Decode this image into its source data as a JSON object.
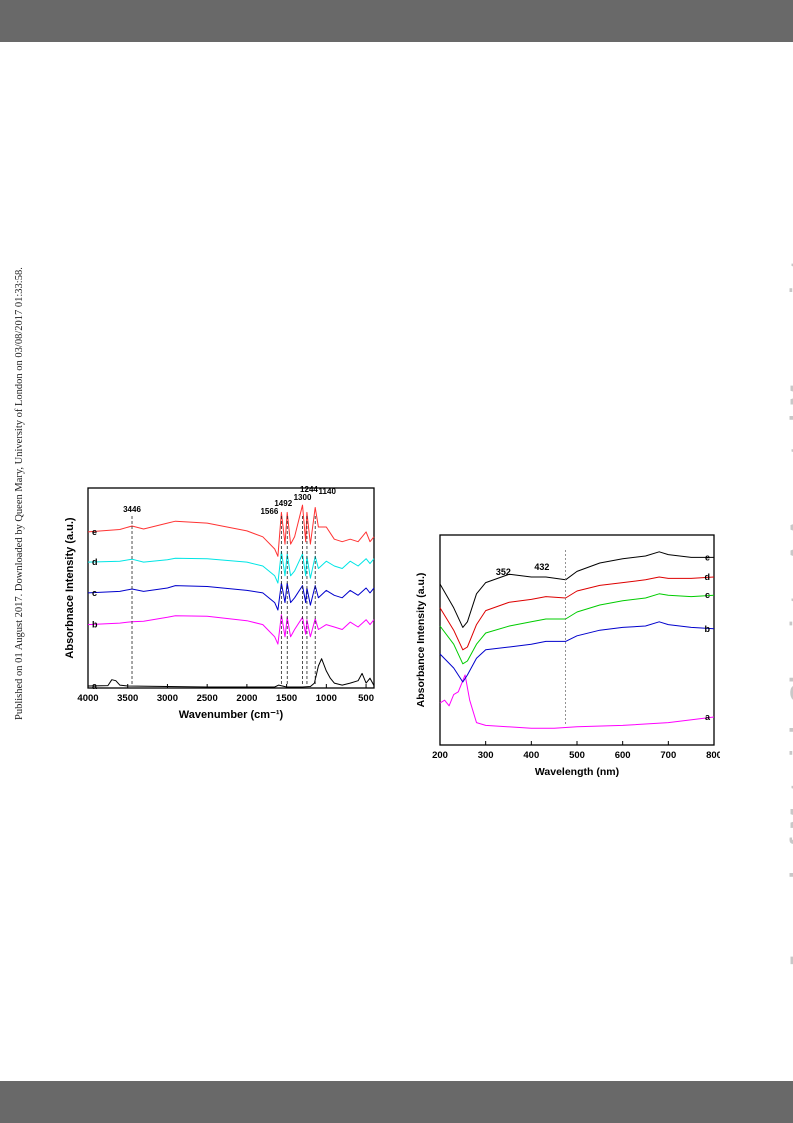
{
  "side_note": "Published on 01 August 2017. Downloaded by Queen Mary, University of London on 03/08/2017 01:33:58.",
  "journal_watermark": "Journal of Materials Chemistry A Accepted Manuscript",
  "chart_data": [
    {
      "type": "line",
      "xlabel": "Wavenumber (cm⁻¹)",
      "ylabel": "Absorbnace Intensity (a.u.)",
      "xlim": [
        4000,
        400
      ],
      "x_ticks": [
        "4000",
        "3500",
        "3000",
        "2500",
        "2000",
        "1500",
        "1000",
        "500"
      ],
      "peak_labels": [
        "3446",
        "1566",
        "1492",
        "1300",
        "1244",
        "1140"
      ],
      "peak_positions": [
        3446,
        1566,
        1492,
        1300,
        1244,
        1140
      ],
      "series": [
        {
          "name": "a",
          "color": "#000000",
          "x": [
            4000,
            3750,
            3700,
            3650,
            3600,
            3500,
            3000,
            2500,
            2000,
            1650,
            1600,
            1500,
            1300,
            1200,
            1150,
            1100,
            1060,
            1000,
            950,
            900,
            800,
            700,
            600,
            550,
            500,
            450,
            400
          ],
          "y": [
            0.04,
            0.05,
            0.17,
            0.15,
            0.06,
            0.04,
            0.03,
            0.02,
            0.02,
            0.02,
            0.06,
            0.02,
            0.02,
            0.03,
            0.1,
            0.45,
            0.6,
            0.35,
            0.2,
            0.1,
            0.06,
            0.1,
            0.15,
            0.3,
            0.1,
            0.2,
            0.05
          ]
        },
        {
          "name": "b",
          "color": "#ff00ff",
          "x": [
            4000,
            3600,
            3446,
            3300,
            3000,
            2900,
            2500,
            2000,
            1800,
            1650,
            1610,
            1566,
            1520,
            1492,
            1450,
            1400,
            1300,
            1260,
            1244,
            1200,
            1140,
            1100,
            1000,
            900,
            800,
            700,
            600,
            500,
            450,
            400
          ],
          "y": [
            1.3,
            1.33,
            1.36,
            1.37,
            1.45,
            1.48,
            1.47,
            1.38,
            1.3,
            1.05,
            0.9,
            1.5,
            1.05,
            1.45,
            1.05,
            1.2,
            1.45,
            1.1,
            1.4,
            1.05,
            1.42,
            1.2,
            1.3,
            1.25,
            1.2,
            1.35,
            1.25,
            1.4,
            1.3,
            1.4
          ]
        },
        {
          "name": "c",
          "color": "#0000cc",
          "x": [
            4000,
            3600,
            3446,
            3300,
            3000,
            2900,
            2500,
            2000,
            1800,
            1650,
            1610,
            1566,
            1520,
            1492,
            1450,
            1400,
            1300,
            1260,
            1244,
            1200,
            1140,
            1100,
            1000,
            900,
            800,
            700,
            600,
            500,
            450,
            400
          ],
          "y": [
            1.95,
            1.98,
            2.03,
            1.98,
            2.05,
            2.1,
            2.08,
            2.0,
            1.95,
            1.75,
            1.6,
            2.15,
            1.75,
            2.15,
            1.75,
            1.85,
            2.1,
            1.75,
            2.05,
            1.7,
            2.1,
            1.85,
            2.0,
            1.9,
            1.85,
            2.0,
            1.9,
            2.05,
            1.95,
            2.05
          ]
        },
        {
          "name": "d",
          "color": "#00e5e5",
          "x": [
            4000,
            3600,
            3446,
            3300,
            3000,
            2900,
            2500,
            2000,
            1800,
            1650,
            1610,
            1566,
            1520,
            1492,
            1450,
            1400,
            1300,
            1260,
            1244,
            1200,
            1140,
            1100,
            1000,
            900,
            800,
            700,
            600,
            500,
            450,
            400
          ],
          "y": [
            2.58,
            2.6,
            2.64,
            2.58,
            2.63,
            2.66,
            2.65,
            2.58,
            2.5,
            2.3,
            2.15,
            2.8,
            2.3,
            2.75,
            2.3,
            2.4,
            2.75,
            2.3,
            2.7,
            2.25,
            2.7,
            2.45,
            2.6,
            2.5,
            2.45,
            2.6,
            2.5,
            2.65,
            2.55,
            2.65
          ]
        },
        {
          "name": "e",
          "color": "#ff3333",
          "x": [
            4000,
            3600,
            3446,
            3300,
            3000,
            2900,
            2500,
            2000,
            1800,
            1650,
            1610,
            1566,
            1520,
            1492,
            1450,
            1400,
            1300,
            1260,
            1244,
            1200,
            1140,
            1100,
            1000,
            900,
            800,
            700,
            600,
            500,
            450,
            400
          ],
          "y": [
            3.2,
            3.25,
            3.32,
            3.26,
            3.38,
            3.42,
            3.38,
            3.22,
            3.1,
            2.85,
            2.7,
            3.6,
            2.95,
            3.6,
            2.95,
            3.1,
            3.75,
            3.0,
            3.6,
            2.95,
            3.7,
            3.3,
            3.3,
            3.05,
            3.0,
            3.05,
            3.0,
            3.2,
            3.0,
            3.1
          ]
        }
      ],
      "series_labels": [
        "a",
        "b",
        "c",
        "d",
        "e"
      ]
    },
    {
      "type": "line",
      "xlabel": "Wavelength (nm)",
      "ylabel": "Absorbance Intensity (a.u.)",
      "xlim": [
        200,
        800
      ],
      "x_ticks": [
        "200",
        "300",
        "400",
        "500",
        "600",
        "700",
        "800"
      ],
      "peak_labels": [
        "352",
        "432"
      ],
      "peak_positions": [
        352,
        432
      ],
      "dashed_x": 475,
      "series": [
        {
          "name": "a",
          "color": "#ff00ff",
          "x": [
            200,
            210,
            220,
            230,
            240,
            255,
            265,
            280,
            300,
            400,
            450,
            500,
            600,
            700,
            800
          ],
          "y": [
            0.3,
            0.32,
            0.28,
            0.36,
            0.38,
            0.5,
            0.32,
            0.16,
            0.14,
            0.12,
            0.12,
            0.13,
            0.14,
            0.16,
            0.2
          ]
        },
        {
          "name": "b",
          "color": "#0000cc",
          "x": [
            200,
            230,
            250,
            260,
            280,
            300,
            352,
            400,
            432,
            475,
            500,
            550,
            600,
            650,
            680,
            700,
            750,
            800
          ],
          "y": [
            0.65,
            0.55,
            0.45,
            0.5,
            0.62,
            0.68,
            0.7,
            0.72,
            0.74,
            0.74,
            0.78,
            0.82,
            0.84,
            0.85,
            0.88,
            0.86,
            0.84,
            0.83
          ]
        },
        {
          "name": "c",
          "color": "#00cc00",
          "x": [
            200,
            230,
            250,
            260,
            280,
            300,
            352,
            400,
            432,
            475,
            500,
            550,
            600,
            650,
            680,
            700,
            750,
            800
          ],
          "y": [
            0.85,
            0.72,
            0.58,
            0.6,
            0.72,
            0.8,
            0.85,
            0.88,
            0.9,
            0.9,
            0.95,
            1.0,
            1.03,
            1.05,
            1.08,
            1.07,
            1.06,
            1.07
          ]
        },
        {
          "name": "d",
          "color": "#dd0000",
          "x": [
            200,
            230,
            250,
            260,
            280,
            300,
            352,
            400,
            432,
            475,
            500,
            550,
            600,
            650,
            680,
            700,
            750,
            800
          ],
          "y": [
            0.98,
            0.82,
            0.68,
            0.7,
            0.86,
            0.96,
            1.02,
            1.04,
            1.06,
            1.05,
            1.1,
            1.14,
            1.16,
            1.18,
            1.2,
            1.19,
            1.19,
            1.2
          ]
        },
        {
          "name": "e",
          "color": "#000000",
          "x": [
            200,
            230,
            250,
            260,
            280,
            300,
            352,
            400,
            432,
            475,
            500,
            550,
            600,
            650,
            680,
            700,
            750,
            800
          ],
          "y": [
            1.15,
            0.98,
            0.84,
            0.88,
            1.08,
            1.16,
            1.22,
            1.2,
            1.2,
            1.18,
            1.24,
            1.3,
            1.33,
            1.35,
            1.38,
            1.36,
            1.34,
            1.34
          ]
        }
      ],
      "series_labels": [
        "a",
        "b",
        "c",
        "d",
        "e"
      ]
    }
  ]
}
